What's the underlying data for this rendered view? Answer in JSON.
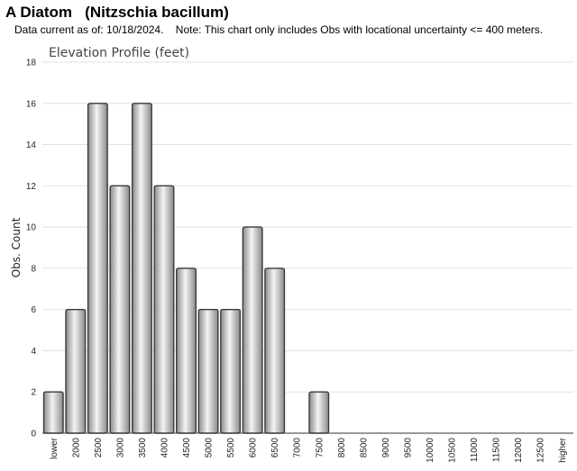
{
  "header": {
    "title": "A Diatom   (Nitzschia bacillum)",
    "subtitle": "Data current as of: 10/18/2024.    Note: This chart only includes Obs with locational uncertainty <= 400 meters."
  },
  "chart_data": {
    "type": "bar",
    "title": "Elevation Profile (feet)",
    "xlabel": "",
    "ylabel": "Obs. Count",
    "ylim": [
      0,
      18
    ],
    "yticks": [
      0,
      2,
      4,
      6,
      8,
      10,
      12,
      14,
      16,
      18
    ],
    "grid": true,
    "legend": "none",
    "categories": [
      "lower",
      "2000",
      "2500",
      "3000",
      "3500",
      "4000",
      "4500",
      "5000",
      "5500",
      "6000",
      "6500",
      "7000",
      "7500",
      "8000",
      "8500",
      "9000",
      "9500",
      "10000",
      "10500",
      "11000",
      "11500",
      "12000",
      "12500",
      "higher"
    ],
    "values": [
      2,
      6,
      16,
      12,
      16,
      12,
      8,
      6,
      6,
      10,
      8,
      0,
      2,
      0,
      0,
      0,
      0,
      0,
      0,
      0,
      0,
      0,
      0,
      0
    ],
    "bar_color": "#bdbdbd",
    "bar_highlight": "#f4f4f4",
    "bar_border": "#3a3a3a"
  }
}
